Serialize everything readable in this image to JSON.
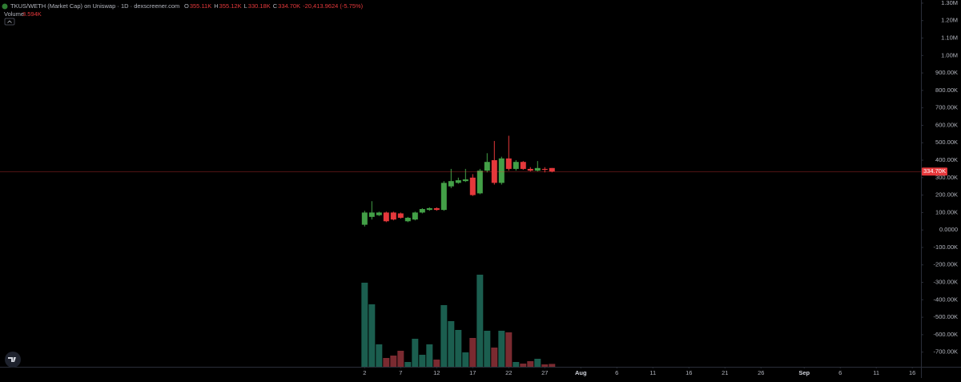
{
  "chart_data": {
    "type": "candlestick",
    "title": "TKUS/WETH (Market Cap) on Uniswap · 1D · dexscreener.com",
    "legend_ohlc": [
      "O",
      "355.11K",
      "H",
      "355.12K",
      "L",
      "330.18K",
      "C",
      "334.70K",
      "-20,413.9624 (-5.75%)"
    ],
    "volume_title": "Volume",
    "volume_value": "3.594K",
    "x": [
      2,
      3,
      4,
      5,
      6,
      7,
      8,
      9,
      10,
      11,
      12,
      13,
      14,
      15,
      16,
      17,
      18,
      19,
      20,
      21,
      22,
      23,
      24,
      25,
      26,
      27,
      28
    ],
    "open": [
      30000,
      75000,
      85000,
      100000,
      100000,
      95000,
      50000,
      60000,
      100000,
      115000,
      125000,
      115000,
      250000,
      270000,
      280000,
      300000,
      210000,
      340000,
      400000,
      270000,
      410000,
      350000,
      390000,
      350000,
      340000,
      350000,
      355110
    ],
    "high": [
      110000,
      165000,
      105000,
      105000,
      105000,
      100000,
      75000,
      105000,
      125000,
      130000,
      130000,
      280000,
      350000,
      300000,
      350000,
      320000,
      350000,
      440000,
      510000,
      420000,
      540000,
      400000,
      395000,
      360000,
      395000,
      360000,
      355120
    ],
    "low": [
      20000,
      60000,
      80000,
      45000,
      55000,
      65000,
      45000,
      55000,
      95000,
      110000,
      110000,
      110000,
      240000,
      265000,
      275000,
      195000,
      205000,
      330000,
      260000,
      260000,
      340000,
      340000,
      345000,
      335000,
      335000,
      330000,
      330180
    ],
    "close": [
      100000,
      100000,
      100000,
      50000,
      60000,
      70000,
      70000,
      100000,
      120000,
      125000,
      115000,
      270000,
      280000,
      285000,
      290000,
      200000,
      340000,
      390000,
      270000,
      410000,
      350000,
      390000,
      350000,
      340000,
      355000,
      345000,
      334700
    ],
    "volume": [
      105,
      78,
      28,
      11,
      14,
      20,
      6,
      35,
      15,
      28,
      9,
      77,
      57,
      46,
      18,
      36,
      115,
      45,
      24,
      45,
      43,
      6,
      4,
      7,
      10,
      3,
      3.594
    ],
    "up_color": "#43a047",
    "down_color": "#e5383b",
    "volume_up_color": "#1b5e4f",
    "volume_down_color": "#7a2a30",
    "last_price": 334700,
    "last_price_label": "334.70K",
    "last_price_color": "#e5383b",
    "xlim": [
      -48.6,
      79.2
    ],
    "xticks": [
      2,
      7,
      12,
      17,
      22,
      27,
      {
        "value": 32,
        "label": "Aug"
      },
      {
        "value": 37,
        "label": "6"
      },
      {
        "value": 42,
        "label": "11"
      },
      {
        "value": 47,
        "label": "16"
      },
      {
        "value": 52,
        "label": "21"
      },
      {
        "value": 57,
        "label": "26"
      },
      {
        "value": 63,
        "label": "Sep"
      },
      {
        "value": 68,
        "label": "6"
      },
      {
        "value": 73,
        "label": "11"
      },
      {
        "value": 78,
        "label": "16"
      }
    ],
    "ylim": [
      -784000,
      1318000
    ],
    "yticks": [
      {
        "value": 1300000,
        "label": "1.30M"
      },
      {
        "value": 1200000,
        "label": "1.20M"
      },
      {
        "value": 1100000,
        "label": "1.10M"
      },
      {
        "value": 1000000,
        "label": "1.00M"
      },
      {
        "value": 900000,
        "label": "900.00K"
      },
      {
        "value": 800000,
        "label": "800.00K"
      },
      {
        "value": 700000,
        "label": "700.00K"
      },
      {
        "value": 600000,
        "label": "600.00K"
      },
      {
        "value": 500000,
        "label": "500.00K"
      },
      {
        "value": 400000,
        "label": "400.00K"
      },
      {
        "value": 300000,
        "label": "300.00K"
      },
      {
        "value": 200000,
        "label": "200.00K"
      },
      {
        "value": 100000,
        "label": "100.00K"
      },
      {
        "value": 0,
        "label": "0.0000"
      },
      {
        "value": -100000,
        "label": "-100.00K"
      },
      {
        "value": -200000,
        "label": "-200.00K"
      },
      {
        "value": -300000,
        "label": "-300.00K"
      },
      {
        "value": -400000,
        "label": "-400.00K"
      },
      {
        "value": -500000,
        "label": "-500.00K"
      },
      {
        "value": -600000,
        "label": "-600.00K"
      },
      {
        "value": -700000,
        "label": "-700.00K"
      }
    ],
    "grid": false
  }
}
